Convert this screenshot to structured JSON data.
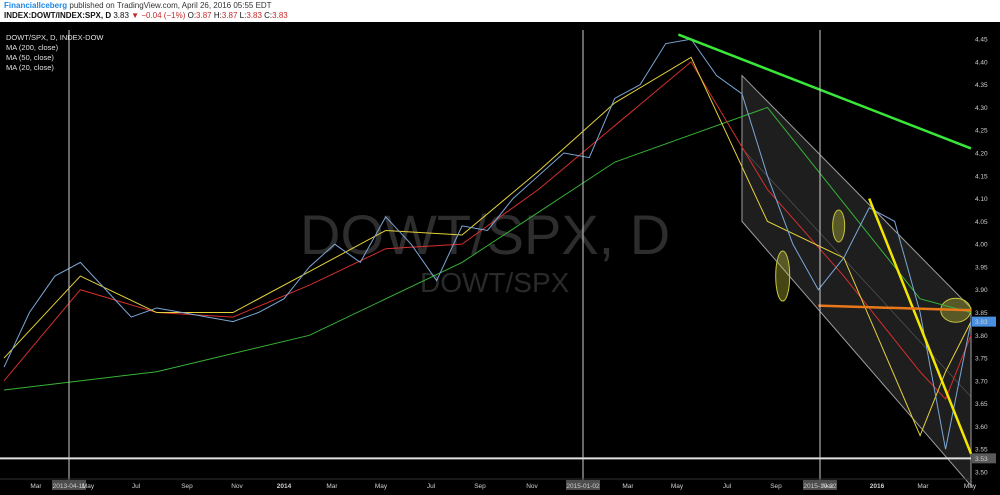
{
  "header": {
    "author": "FinancialIceberg",
    "published_text": " published on TradingView.com, April 26, 2016 05:55 EDT",
    "symbol_line": "INDEX:DOWT/INDEX:SPX, D",
    "last_value": "3.83",
    "change_text": "−0.04 (−1%)",
    "o_label": "O:",
    "o_value": "3.87",
    "h_label": "H:",
    "h_value": "3.87",
    "l_label": "L:",
    "l_value": "3.83",
    "c_label": "C:",
    "c_value": "3.83"
  },
  "legend": {
    "title": "DOWT/SPX, D, INDEX-DOW",
    "items": [
      "MA (200, close)",
      "MA (50, close)",
      "MA (20, close)"
    ]
  },
  "watermark": {
    "main": "DOWT/SPX, D",
    "sub": "DOWT/SPX"
  },
  "colors": {
    "price": "#7ba7d7",
    "ma200": "#36b336",
    "ma50": "#d32f2f",
    "ma20": "#e5d23a",
    "green_trend": "#39e639",
    "yellow_trend": "#f2e600",
    "orange_level": "#e8781a",
    "channel": "#9e9e9e",
    "ellipse": "#c8c83c"
  },
  "chart_data": {
    "type": "line",
    "title": "DOWT/SPX, D, INDEX-DOW",
    "ylim": [
      3.5,
      4.47
    ],
    "y_ticks": [
      "4.45",
      "4.40",
      "4.35",
      "4.30",
      "4.25",
      "4.20",
      "4.15",
      "4.10",
      "4.05",
      "4.00",
      "3.95",
      "3.90",
      "3.85",
      "3.80",
      "3.75",
      "3.70",
      "3.65",
      "3.60",
      "3.55",
      "3.50"
    ],
    "x_ticks": [
      "Mar",
      "May",
      "Jul",
      "Sep",
      "Nov",
      "2014",
      "Mar",
      "May",
      "Jul",
      "Sep",
      "Nov",
      "Mar",
      "May",
      "Jul",
      "Sep",
      "Nov",
      "2016",
      "Mar",
      "May"
    ],
    "x_markers": [
      "2013-04-11",
      "2015-01-02",
      "2015-10-22"
    ],
    "price_labels": [
      "3.83",
      "3.53"
    ],
    "price_x": [
      0,
      1,
      2,
      3,
      4,
      5,
      6,
      7,
      8,
      9,
      10,
      11,
      12,
      13,
      14,
      15,
      16,
      17,
      18,
      19,
      20,
      21,
      22,
      23,
      24,
      25,
      26,
      27,
      28,
      29,
      30,
      31,
      32,
      33,
      34,
      35,
      36,
      37,
      38
    ],
    "price_y": [
      3.73,
      3.85,
      3.93,
      3.96,
      3.9,
      3.84,
      3.86,
      3.85,
      3.84,
      3.83,
      3.85,
      3.88,
      3.95,
      4.0,
      3.96,
      4.06,
      4.0,
      3.92,
      4.04,
      4.03,
      4.1,
      4.15,
      4.2,
      4.19,
      4.32,
      4.35,
      4.44,
      4.45,
      4.37,
      4.33,
      4.15,
      4.0,
      3.9,
      3.97,
      4.08,
      4.05,
      3.85,
      3.55,
      3.83
    ],
    "series": [
      {
        "name": "MA (200, close)",
        "x": [
          0,
          6,
          12,
          18,
          24,
          30,
          36,
          38
        ],
        "y": [
          3.68,
          3.72,
          3.8,
          3.96,
          4.18,
          4.3,
          3.88,
          3.85
        ]
      },
      {
        "name": "MA (50, close)",
        "x": [
          0,
          3,
          6,
          9,
          12,
          15,
          18,
          21,
          24,
          27,
          30,
          33,
          36,
          37,
          38
        ],
        "y": [
          3.7,
          3.9,
          3.85,
          3.84,
          3.91,
          3.99,
          4.0,
          4.12,
          4.26,
          4.4,
          4.12,
          3.93,
          3.72,
          3.66,
          3.8
        ]
      },
      {
        "name": "MA (20, close)",
        "x": [
          0,
          3,
          6,
          9,
          12,
          15,
          18,
          21,
          24,
          27,
          30,
          33,
          36,
          37,
          38
        ],
        "y": [
          3.75,
          3.93,
          3.85,
          3.85,
          3.94,
          4.03,
          4.02,
          4.16,
          4.31,
          4.41,
          4.05,
          3.97,
          3.58,
          3.72,
          3.83
        ]
      }
    ],
    "trendlines": [
      {
        "name": "green-downtrend",
        "x": [
          26.5,
          38
        ],
        "y": [
          4.46,
          4.21
        ]
      },
      {
        "name": "yellow-downtrend",
        "x": [
          34,
          38
        ],
        "y": [
          4.1,
          3.54
        ]
      },
      {
        "name": "orange-support",
        "x": [
          32,
          38
        ],
        "y": [
          3.865,
          3.855
        ]
      }
    ],
    "channel": {
      "x": [
        29,
        38
      ],
      "upper_y": [
        4.37,
        3.86
      ],
      "lower_y": [
        4.05,
        3.47
      ]
    },
    "grid": false
  }
}
